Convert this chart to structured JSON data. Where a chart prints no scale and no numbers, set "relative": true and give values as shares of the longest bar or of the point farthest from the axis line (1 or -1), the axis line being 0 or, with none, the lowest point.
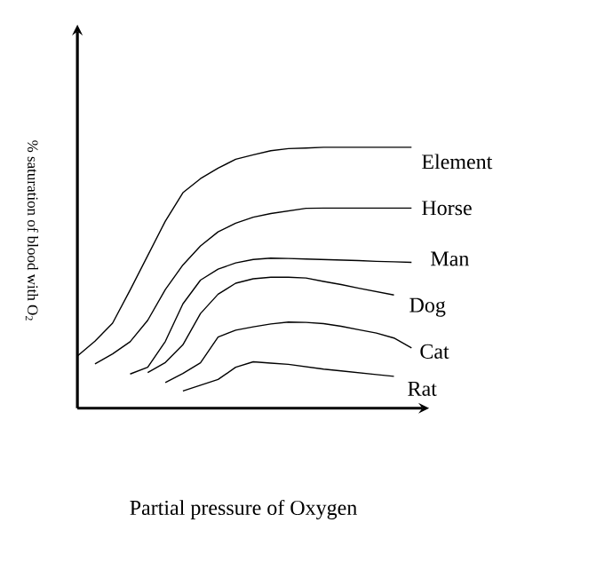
{
  "chart_data": {
    "type": "line",
    "relative": true,
    "xlabel": "Partial pressure of Oxygen",
    "ylabel": "% saturation of blood with O$_{2}$",
    "marker": "none",
    "line_style": "solid",
    "categories": [
      null,
      null,
      null,
      null,
      null,
      null,
      null,
      null,
      null,
      null,
      null,
      null,
      null,
      null,
      null,
      null,
      null,
      null,
      null,
      null
    ],
    "series": [
      {
        "name": "Element",
        "color": "#000000",
        "values": [
          0.2,
          0.257,
          0.326,
          0.453,
          0.585,
          0.717,
          0.826,
          0.88,
          0.92,
          0.954,
          0.971,
          0.987,
          0.995,
          0.997,
          1,
          1,
          1,
          1,
          1,
          1
        ]
      },
      {
        "name": "Horse",
        "color": "#000000",
        "values": [
          null,
          0.17,
          0.208,
          0.255,
          0.337,
          0.455,
          0.549,
          0.622,
          0.676,
          0.709,
          0.732,
          0.746,
          0.756,
          0.766,
          0.767,
          0.767,
          0.767,
          0.767,
          0.767,
          0.767
        ]
      },
      {
        "name": "Man",
        "color": "#000000",
        "values": [
          null,
          null,
          null,
          0.131,
          0.157,
          0.256,
          0.4,
          0.491,
          0.533,
          0.557,
          0.57,
          0.575,
          0.574,
          0.572,
          0.57,
          0.568,
          0.566,
          0.563,
          0.561,
          0.559
        ]
      },
      {
        "name": "Dog",
        "color": "#000000",
        "values": [
          null,
          null,
          null,
          null,
          0.137,
          0.175,
          0.243,
          0.363,
          0.437,
          0.479,
          0.496,
          0.502,
          0.502,
          0.499,
          0.486,
          0.474,
          0.46,
          0.447,
          0.434,
          null
        ]
      },
      {
        "name": "Cat",
        "color": "#000000",
        "values": [
          null,
          null,
          null,
          null,
          null,
          0.098,
          0.133,
          0.174,
          0.273,
          0.299,
          0.312,
          0.323,
          0.33,
          0.329,
          0.324,
          0.314,
          0.301,
          0.288,
          0.269,
          0.231
        ]
      },
      {
        "name": "Rat",
        "color": "#000000",
        "values": [
          null,
          null,
          null,
          null,
          null,
          null,
          0.066,
          0.088,
          0.11,
          0.157,
          0.178,
          0.173,
          0.168,
          0.159,
          0.15,
          0.143,
          0.136,
          0.129,
          0.122,
          null
        ]
      }
    ]
  }
}
